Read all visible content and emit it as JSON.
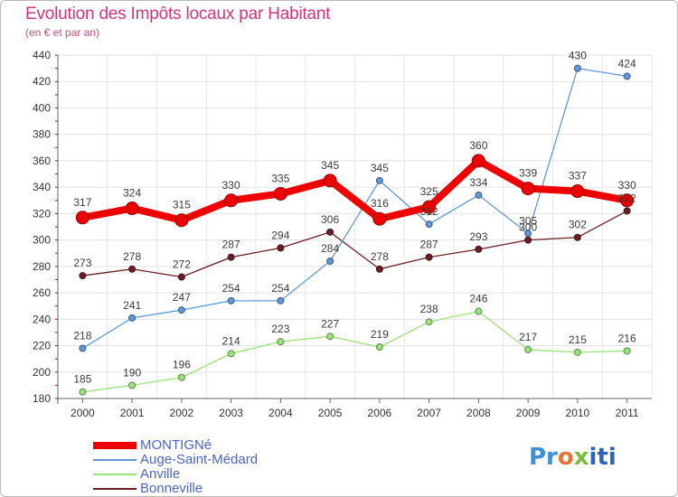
{
  "chart_data": {
    "type": "line",
    "title": "Evolution des Impôts locaux par Habitant",
    "subtitle": "(en € et par an)",
    "categories": [
      "2000",
      "2001",
      "2002",
      "2003",
      "2004",
      "2005",
      "2006",
      "2007",
      "2008",
      "2009",
      "2010",
      "2011"
    ],
    "ylim": [
      180,
      440
    ],
    "yticks": [
      180,
      200,
      220,
      240,
      260,
      280,
      300,
      320,
      340,
      360,
      380,
      400,
      420,
      440
    ],
    "grid": true,
    "legend_position": "bottom-left",
    "series": [
      {
        "name": "MONTIGNé",
        "color": "#ee0000",
        "values": [
          317,
          324,
          315,
          330,
          335,
          345,
          316,
          325,
          360,
          339,
          337,
          330
        ]
      },
      {
        "name": "Auge-Saint-Médard",
        "color": "#5f99d6",
        "values": [
          218,
          241,
          247,
          254,
          254,
          284,
          345,
          312,
          334,
          305,
          430,
          424
        ]
      },
      {
        "name": "Anville",
        "color": "#9ae27a",
        "values": [
          185,
          190,
          196,
          214,
          223,
          227,
          219,
          238,
          246,
          217,
          215,
          216
        ]
      },
      {
        "name": "Bonneville",
        "color": "#6b1f24",
        "values": [
          273,
          278,
          272,
          287,
          294,
          306,
          278,
          287,
          293,
          300,
          302,
          322
        ]
      }
    ]
  },
  "logo": {
    "parts": [
      "Pr",
      "o",
      "x",
      "iti"
    ]
  }
}
